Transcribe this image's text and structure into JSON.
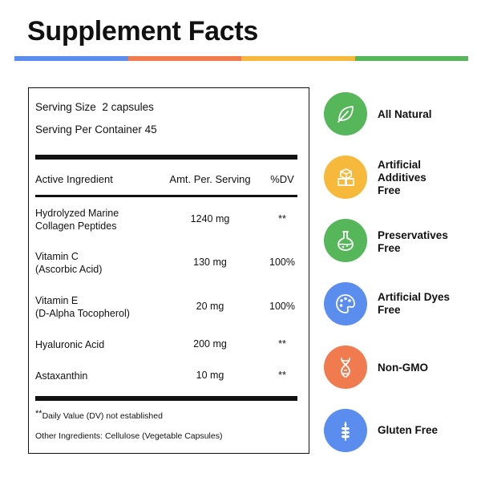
{
  "title": "Supplement Facts",
  "colors": {
    "blue": "#5b8def",
    "orange": "#f07b4f",
    "yellow": "#f7b93c",
    "green": "#55b65a"
  },
  "facts": {
    "serving_size_label": "Serving Size",
    "serving_size_value": "2 capsules",
    "servings_per_container": "Serving Per Container 45",
    "headers": {
      "ingredient": "Active Ingredient",
      "amount": "Amt. Per. Serving",
      "dv": "%DV"
    },
    "rows": [
      {
        "name_line1": "Hydrolyzed Marine",
        "name_line2": "Collagen Peptides",
        "amount": "1240 mg",
        "dv": "**"
      },
      {
        "name_line1": "Vitamin C",
        "name_line2": "(Ascorbic Acid)",
        "amount": "130 mg",
        "dv": "100%"
      },
      {
        "name_line1": "Vitamin E",
        "name_line2": "(D-Alpha Tocopherol)",
        "amount": "20 mg",
        "dv": "100%"
      },
      {
        "name_line1": "Hyaluronic Acid",
        "name_line2": "",
        "amount": "200 mg",
        "dv": "**"
      },
      {
        "name_line1": "Astaxanthin",
        "name_line2": "",
        "amount": "10 mg",
        "dv": "**"
      }
    ],
    "footnote_mark": "**",
    "footnote_text": "Daily Value (DV) not established",
    "other_ingredients": "Other Ingredients: Cellulose (Vegetable Capsules)"
  },
  "badges": [
    {
      "icon": "leaf-icon",
      "color": "#55b65a",
      "line1": "All Natural",
      "line2": "",
      "line3": ""
    },
    {
      "icon": "sugar-cubes-icon",
      "color": "#f7b93c",
      "line1": "Artificial",
      "line2": "Additives",
      "line3": "Free"
    },
    {
      "icon": "flask-icon",
      "color": "#55b65a",
      "line1": "Preservatives",
      "line2": "Free",
      "line3": ""
    },
    {
      "icon": "palette-icon",
      "color": "#5b8def",
      "line1": "Artificial Dyes",
      "line2": "Free",
      "line3": ""
    },
    {
      "icon": "dna-icon",
      "color": "#f07b4f",
      "line1": "Non-GMO",
      "line2": "",
      "line3": ""
    },
    {
      "icon": "wheat-icon",
      "color": "#5b8def",
      "line1": "Gluten Free",
      "line2": "",
      "line3": ""
    }
  ]
}
